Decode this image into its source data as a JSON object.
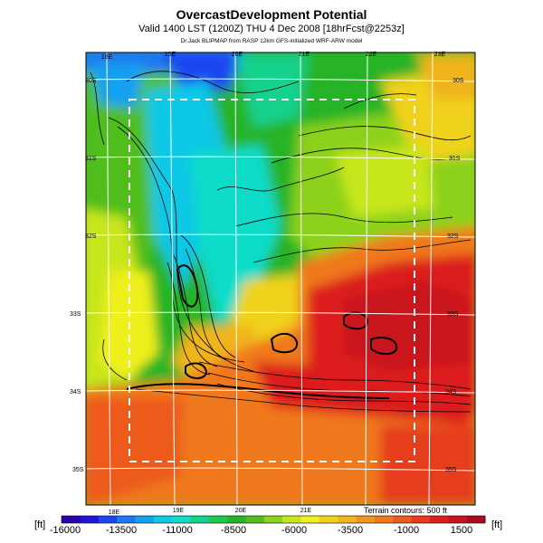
{
  "header": {
    "title": "OvercastDevelopment Potential",
    "valid": "Valid 1400 LST (1200Z) THU 4 Dec 2008 [18hrFcst@2253z]",
    "source": "Dr.Jack BLIPMAP from RASP 12km GFS-initialized WRF-ARW model"
  },
  "map": {
    "top_lon_labels": [
      "18E",
      "19E",
      "20E",
      "21E",
      "22E",
      "23E"
    ],
    "bottom_lon_labels": [
      "18E",
      "19E",
      "20E",
      "21E"
    ],
    "left_lat_labels": [
      "30S",
      "31S",
      "32S",
      "33S",
      "34S",
      "35S"
    ],
    "right_lat_labels": [
      "30S",
      "31S",
      "32S",
      "33S",
      "34S",
      "35S"
    ]
  },
  "colorbar": {
    "unit_left": "[ft]",
    "unit_right": "[ft]",
    "terrain_note": "Terrain contours: 500 ft",
    "tick_labels": [
      "-16000",
      "-13500",
      "-11000",
      "-8500",
      "-6000",
      "-3500",
      "-1000",
      "1500"
    ],
    "colors": [
      "#2a00a8",
      "#1f14d8",
      "#1e46f0",
      "#1e78f0",
      "#14a0f0",
      "#10c8e6",
      "#10dcc8",
      "#14d28c",
      "#1ec850",
      "#28b428",
      "#50be1e",
      "#8cd21e",
      "#c8e61e",
      "#f0f01e",
      "#f0d21e",
      "#f0b41e",
      "#f0961e",
      "#f0781e",
      "#ec5a1e",
      "#e63c1e",
      "#dc1e1e",
      "#c8141e",
      "#aa0a1e"
    ]
  },
  "legend_colors": {
    "deep_blue": "#1e46f0",
    "cyan": "#10c8e6",
    "green": "#28b428",
    "yellow": "#f0f01e",
    "orange": "#f0781e",
    "red": "#dc1e1e"
  }
}
